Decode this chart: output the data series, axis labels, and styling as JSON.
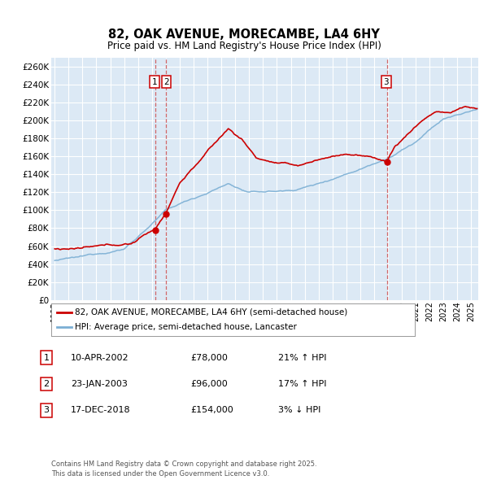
{
  "title": "82, OAK AVENUE, MORECAMBE, LA4 6HY",
  "subtitle": "Price paid vs. HM Land Registry's House Price Index (HPI)",
  "background_color": "#ffffff",
  "plot_bg_color": "#dce9f5",
  "grid_color": "#ffffff",
  "ylim": [
    0,
    270000
  ],
  "legend_line1": "82, OAK AVENUE, MORECAMBE, LA4 6HY (semi-detached house)",
  "legend_line2": "HPI: Average price, semi-detached house, Lancaster",
  "line1_color": "#cc0000",
  "line2_color": "#7bafd4",
  "footer": "Contains HM Land Registry data © Crown copyright and database right 2025.\nThis data is licensed under the Open Government Licence v3.0.",
  "transactions": [
    {
      "num": 1,
      "date": "10-APR-2002",
      "price": "£78,000",
      "change": "21% ↑ HPI"
    },
    {
      "num": 2,
      "date": "23-JAN-2003",
      "price": "£96,000",
      "change": "17% ↑ HPI"
    },
    {
      "num": 3,
      "date": "17-DEC-2018",
      "price": "£154,000",
      "change": "3% ↓ HPI"
    }
  ]
}
